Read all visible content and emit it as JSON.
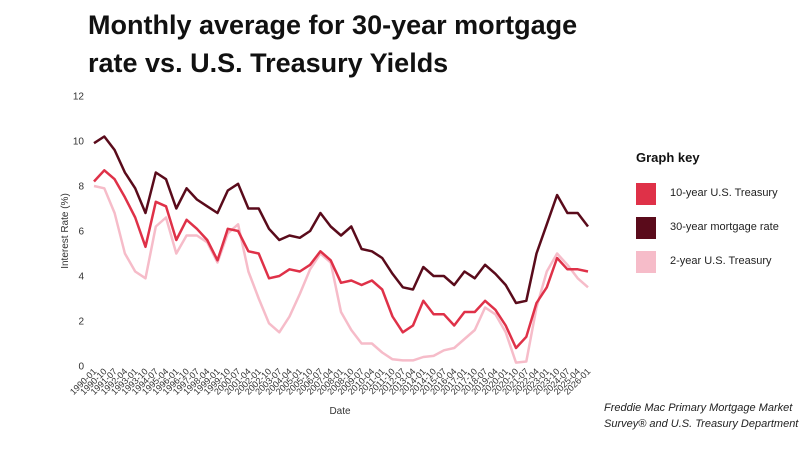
{
  "chart_data": {
    "type": "line",
    "title": "Monthly average for 30-year mortgage rate vs. U.S. Treasury Yields",
    "x_label": "Date",
    "y_label": "Interest Rate (%)",
    "legend_title": "Graph key",
    "source": "Freddie Mac Primary Mortgage Market Survey® and U.S. Treasury Department",
    "categories": [
      "1990-01",
      "1990-10",
      "1991-07",
      "1992-04",
      "1993-01",
      "1993-10",
      "1994-07",
      "1995-04",
      "1996-01",
      "1996-10",
      "1997-07",
      "1998-04",
      "1999-01",
      "1999-10",
      "2000-07",
      "2001-04",
      "2002-01",
      "2002-10",
      "2003-07",
      "2004-04",
      "2005-01",
      "2005-10",
      "2006-07",
      "2007-04",
      "2008-01",
      "2008-10",
      "2009-07",
      "2010-04",
      "2011-01",
      "2011-10",
      "2012-07",
      "2013-04",
      "2014-01",
      "2014-10",
      "2015-07",
      "2016-04",
      "2017-01",
      "2017-10",
      "2018-07",
      "2019-04",
      "2020-01",
      "2020-10",
      "2021-07",
      "2022-04",
      "2023-01",
      "2023-10",
      "2024-07",
      "2025-04",
      "2026-01"
    ],
    "series": [
      {
        "name": "10-year U.S. Treasury",
        "color": "#df3148",
        "values": [
          8.2,
          8.7,
          8.3,
          7.5,
          6.6,
          5.3,
          7.3,
          7.1,
          5.6,
          6.5,
          6.1,
          5.6,
          4.7,
          6.1,
          6.0,
          5.1,
          5.0,
          3.9,
          4.0,
          4.3,
          4.2,
          4.5,
          5.1,
          4.7,
          3.7,
          3.8,
          3.6,
          3.8,
          3.4,
          2.2,
          1.5,
          1.8,
          2.9,
          2.3,
          2.3,
          1.8,
          2.4,
          2.4,
          2.9,
          2.5,
          1.8,
          0.8,
          1.3,
          2.8,
          3.5,
          4.8,
          4.3,
          4.3,
          4.2
        ]
      },
      {
        "name": "30-year mortgage rate",
        "color": "#5a0b1b",
        "values": [
          9.9,
          10.2,
          9.6,
          8.6,
          7.9,
          6.8,
          8.6,
          8.3,
          7.0,
          7.9,
          7.4,
          7.1,
          6.8,
          7.8,
          8.1,
          7.0,
          7.0,
          6.1,
          5.6,
          5.8,
          5.7,
          6.0,
          6.8,
          6.2,
          5.8,
          6.2,
          5.2,
          5.1,
          4.8,
          4.1,
          3.5,
          3.4,
          4.4,
          4.0,
          4.0,
          3.6,
          4.2,
          3.9,
          4.5,
          4.1,
          3.6,
          2.8,
          2.9,
          5.0,
          6.3,
          7.6,
          6.8,
          6.8,
          6.2
        ]
      },
      {
        "name": "2-year U.S. Treasury",
        "color": "#f6bcc9",
        "values": [
          8.0,
          7.9,
          6.8,
          5.0,
          4.2,
          3.9,
          6.2,
          6.6,
          5.0,
          5.8,
          5.8,
          5.5,
          4.6,
          5.9,
          6.3,
          4.2,
          3.0,
          1.9,
          1.5,
          2.2,
          3.2,
          4.3,
          5.0,
          4.6,
          2.4,
          1.6,
          1.0,
          1.0,
          0.6,
          0.3,
          0.25,
          0.25,
          0.4,
          0.45,
          0.7,
          0.8,
          1.2,
          1.6,
          2.6,
          2.3,
          1.5,
          0.15,
          0.2,
          2.6,
          4.2,
          5.0,
          4.5,
          3.9,
          3.5
        ]
      }
    ],
    "ylim": [
      0,
      12
    ],
    "yticks": [
      0,
      2,
      4,
      6,
      8,
      10,
      12
    ],
    "grid": false
  }
}
